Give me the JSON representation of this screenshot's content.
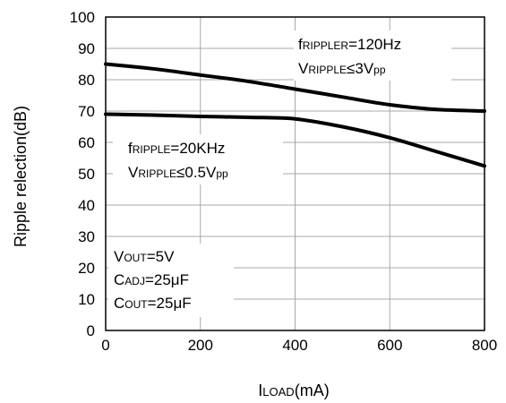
{
  "chart_data": {
    "type": "line",
    "title": "",
    "xlabel": "ILOAD(mA)",
    "ylabel": "Ripple relection(dB)",
    "xlim": [
      0,
      800
    ],
    "ylim": [
      0,
      100
    ],
    "x_ticks": [
      "0",
      "200",
      "400",
      "600",
      "800"
    ],
    "y_ticks": [
      "0",
      "10",
      "20",
      "30",
      "40",
      "50",
      "60",
      "70",
      "80",
      "90",
      "100"
    ],
    "grid": true,
    "series": [
      {
        "name": "fRIPPLER=120Hz VRIPPLE≤3Vpp",
        "x": [
          0,
          100,
          200,
          300,
          400,
          500,
          600,
          700,
          800
        ],
        "values": [
          85,
          83.5,
          81.5,
          79.5,
          77,
          74.5,
          72,
          70.5,
          70
        ]
      },
      {
        "name": "fRIPPLE=20KHz VRIPPLE≤0.5Vpp",
        "x": [
          0,
          100,
          200,
          300,
          400,
          500,
          600,
          700,
          800
        ],
        "values": [
          69,
          68.7,
          68.3,
          68,
          67.5,
          65,
          61.5,
          57,
          52.5
        ]
      }
    ],
    "annotations": {
      "high": [
        "fRIPPLER=120Hz",
        "VRIPPLE≤3Vpp"
      ],
      "low": [
        "fRIPPLE=20KHz",
        "VRIPPLE≤0.5Vpp"
      ],
      "conditions": [
        "VOUT=5V",
        "CADJ=25μF",
        "COUT=25μF"
      ]
    }
  }
}
